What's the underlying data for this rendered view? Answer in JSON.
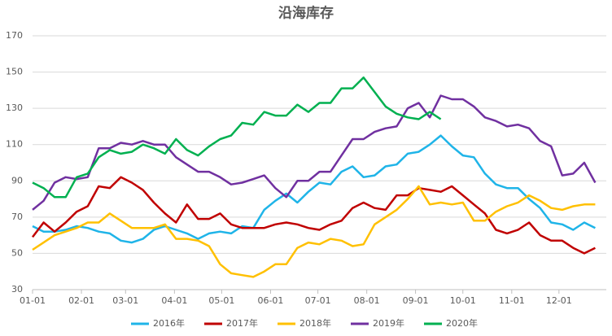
{
  "chart_data": {
    "type": "line",
    "title": "沿海库存",
    "x": [
      0,
      1,
      2,
      3,
      4,
      5,
      6,
      7,
      8,
      9,
      10,
      11,
      12,
      13,
      14,
      15,
      16,
      17,
      18,
      19,
      20,
      21,
      22,
      23,
      24,
      25,
      26,
      27,
      28,
      29,
      30,
      31,
      32,
      33,
      34,
      35,
      36,
      37,
      38,
      39,
      40,
      41,
      42,
      43,
      44,
      45,
      46,
      47,
      48,
      49,
      50,
      51
    ],
    "xlim": [
      0,
      52
    ],
    "xticks": [
      {
        "value": 0,
        "label": "01-01"
      },
      {
        "value": 4.43,
        "label": "02-01"
      },
      {
        "value": 8.43,
        "label": "03-01"
      },
      {
        "value": 12.86,
        "label": "04-01"
      },
      {
        "value": 17.14,
        "label": "05-01"
      },
      {
        "value": 21.57,
        "label": "06-01"
      },
      {
        "value": 25.86,
        "label": "07-01"
      },
      {
        "value": 30.29,
        "label": "08-01"
      },
      {
        "value": 34.71,
        "label": "09-01"
      },
      {
        "value": 39,
        "label": "10-01"
      },
      {
        "value": 43.43,
        "label": "11-01"
      },
      {
        "value": 47.71,
        "label": "12-01"
      }
    ],
    "ylim": [
      30,
      170
    ],
    "yticks": [
      30,
      50,
      70,
      90,
      110,
      130,
      150,
      170
    ],
    "grid": true,
    "legend": "bottom",
    "series": [
      {
        "name": "2016年",
        "color": "#1fb4e8",
        "values": [
          65,
          62,
          62,
          63,
          65,
          64,
          62,
          61,
          57,
          56,
          58,
          63,
          65,
          63,
          61,
          58,
          61,
          62,
          61,
          65,
          64,
          74,
          79,
          83,
          78,
          84,
          89,
          88,
          95,
          98,
          92,
          93,
          98,
          99,
          105,
          106,
          110,
          115,
          109,
          104,
          103,
          94,
          88,
          86,
          86,
          80,
          75,
          67,
          66,
          63,
          67,
          64
        ]
      },
      {
        "name": "2017年",
        "color": "#c00000",
        "values": [
          59,
          67,
          62,
          67,
          73,
          76,
          87,
          86,
          92,
          89,
          85,
          78,
          72,
          67,
          77,
          69,
          69,
          72,
          66,
          64,
          64,
          64,
          66,
          67,
          66,
          64,
          63,
          66,
          68,
          75,
          78,
          75,
          74,
          82,
          82,
          86,
          85,
          84,
          87,
          82,
          77,
          72,
          63,
          61,
          63,
          67,
          60,
          57,
          57,
          53,
          50,
          53
        ]
      },
      {
        "name": "2018年",
        "color": "#ffc000",
        "values": [
          52,
          56,
          60,
          62,
          64,
          67,
          67,
          72,
          68,
          64,
          64,
          64,
          66,
          58,
          58,
          57,
          54,
          44,
          39,
          38,
          37,
          40,
          44,
          44,
          53,
          56,
          55,
          58,
          57,
          54,
          55,
          66,
          70,
          74,
          80,
          87,
          77,
          78,
          77,
          78,
          68,
          68,
          73,
          76,
          78,
          82,
          79,
          75,
          74,
          76,
          77,
          77
        ]
      },
      {
        "name": "2019年",
        "color": "#7030a0",
        "values": [
          74,
          79,
          89,
          92,
          91,
          92,
          108,
          108,
          111,
          110,
          112,
          110,
          110,
          103,
          99,
          95,
          95,
          92,
          88,
          89,
          91,
          93,
          86,
          81,
          90,
          90,
          95,
          95,
          104,
          113,
          113,
          117,
          119,
          120,
          130,
          133,
          125,
          137,
          135,
          135,
          131,
          125,
          123,
          120,
          121,
          119,
          112,
          109,
          93,
          94,
          100,
          89
        ]
      },
      {
        "name": "2020年",
        "color": "#00b050",
        "values": [
          89,
          86,
          81,
          81,
          92,
          94,
          103,
          107,
          105,
          106,
          110,
          108,
          105,
          113,
          107,
          104,
          109,
          113,
          115,
          122,
          121,
          128,
          126,
          126,
          132,
          128,
          133,
          133,
          141,
          141,
          147,
          139,
          131,
          127,
          125,
          124,
          128,
          124,
          null,
          null,
          null,
          null,
          null,
          null,
          null,
          null,
          null,
          null,
          null,
          null,
          null,
          null
        ]
      }
    ]
  }
}
